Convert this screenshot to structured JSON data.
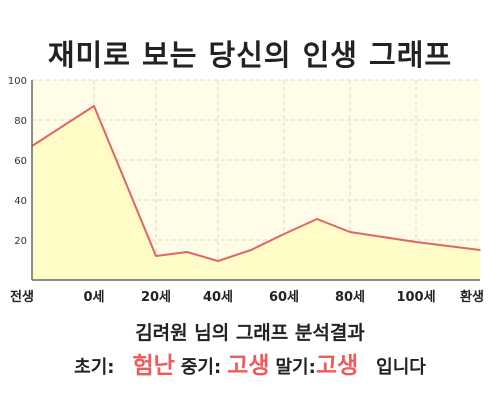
{
  "page": {
    "title": "재미로 보는 당신의 인생 그래프",
    "summary": "김려원 님의 그래프 분석결과",
    "result": {
      "early_label": "초기:",
      "early_value": "험난",
      "middle_label": "중기:",
      "middle_value": "고생",
      "late_label": "말기:",
      "late_value": "고생",
      "suffix": "입니다"
    }
  },
  "colors": {
    "line": "#e06666",
    "fill": "#fffcc8",
    "plot_bg": "#fffde8",
    "grid": "#dcdcb8",
    "highlight": "#f05a5a"
  },
  "chart_data": {
    "type": "area",
    "title": "",
    "xlabel": "",
    "ylabel": "",
    "x_ticks": [
      "전생",
      "0세",
      "20세",
      "40세",
      "60세",
      "80세",
      "100세",
      "환생"
    ],
    "y_ticks": [
      "100",
      "80",
      "60",
      "40",
      "20"
    ],
    "ylim": [
      0,
      100
    ],
    "grid": true,
    "series": [
      {
        "points": [
          [
            "전생",
            67
          ],
          [
            "0세",
            87
          ],
          [
            "20세",
            12
          ],
          [
            "30세",
            14
          ],
          [
            "40세",
            9.5
          ],
          [
            "50세",
            15
          ],
          [
            "60세",
            23
          ],
          [
            "70세",
            30.5
          ],
          [
            "80세",
            24
          ],
          [
            "100세",
            19
          ],
          [
            "환생",
            15
          ]
        ]
      }
    ]
  }
}
